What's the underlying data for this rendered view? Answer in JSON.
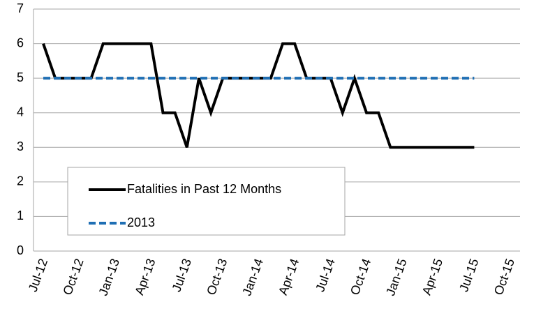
{
  "chart_data": {
    "type": "line",
    "categories": [
      "Jul-12",
      null,
      null,
      "Oct-12",
      null,
      null,
      "Jan-13",
      null,
      null,
      "Apr-13",
      null,
      null,
      "Jul-13",
      null,
      null,
      "Oct-13",
      null,
      null,
      "Jan-14",
      null,
      null,
      "Apr-14",
      null,
      null,
      "Jul-14",
      null,
      null,
      "Oct-14",
      null,
      null,
      "Jan-15",
      null,
      null,
      "Apr-15",
      null,
      null,
      "Jul-15",
      null,
      null,
      "Oct-15"
    ],
    "series": [
      {
        "name": "Fatalities in Past 12 Months",
        "color": "#000000",
        "dash": false,
        "values": [
          6,
          5,
          5,
          5,
          5,
          6,
          6,
          6,
          6,
          6,
          4,
          4,
          3,
          5,
          4,
          5,
          5,
          5,
          5,
          5,
          6,
          6,
          5,
          5,
          5,
          4,
          5,
          4,
          4,
          3,
          3,
          3,
          3,
          3,
          3,
          3,
          3,
          null,
          null,
          null
        ]
      },
      {
        "name": "2013",
        "color": "#1f6fb4",
        "dash": true,
        "values": [
          5,
          5,
          5,
          5,
          5,
          5,
          5,
          5,
          5,
          5,
          5,
          5,
          5,
          5,
          5,
          5,
          5,
          5,
          5,
          5,
          5,
          5,
          5,
          5,
          5,
          5,
          5,
          5,
          5,
          5,
          5,
          5,
          5,
          5,
          5,
          5,
          5,
          null,
          null,
          null
        ]
      }
    ],
    "ylim": [
      0,
      7
    ],
    "yticks": [
      0,
      1,
      2,
      3,
      4,
      5,
      6,
      7
    ],
    "grid": true
  }
}
